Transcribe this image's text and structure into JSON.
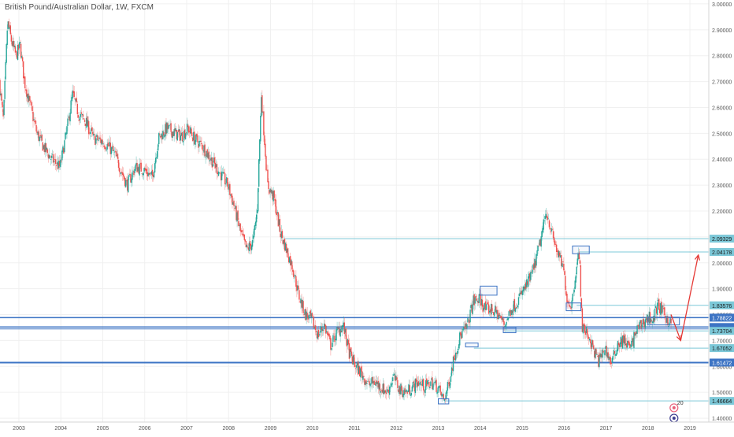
{
  "chart_data": {
    "type": "candlestick",
    "title": "British Pound/Australian Dollar, 1W, FXCM",
    "x_ticks": [
      "2003",
      "2004",
      "2005",
      "2006",
      "2007",
      "2008",
      "2009",
      "2010",
      "2011",
      "2012",
      "2013",
      "2014",
      "2015",
      "2016",
      "2017",
      "2018",
      "2019"
    ],
    "x_range": [
      2002.55,
      2019.45
    ],
    "y_ticks": [
      "1.40000",
      "1.50000",
      "1.60000",
      "1.70000",
      "1.80000",
      "1.90000",
      "2.00000",
      "2.10000",
      "2.20000",
      "2.30000",
      "2.40000",
      "2.50000",
      "2.60000",
      "2.70000",
      "2.80000",
      "2.90000",
      "3.00000"
    ],
    "y_range": [
      1.385,
      3.015
    ],
    "up_color": "#26a69a",
    "down_color": "#ef5350",
    "price_path": [
      [
        2002.55,
        2.7
      ],
      [
        2002.65,
        2.55
      ],
      [
        2002.75,
        2.93
      ],
      [
        2002.85,
        2.85
      ],
      [
        2002.95,
        2.8
      ],
      [
        2003.05,
        2.84
      ],
      [
        2003.15,
        2.7
      ],
      [
        2003.3,
        2.6
      ],
      [
        2003.45,
        2.5
      ],
      [
        2003.6,
        2.45
      ],
      [
        2003.8,
        2.4
      ],
      [
        2004.0,
        2.37
      ],
      [
        2004.15,
        2.5
      ],
      [
        2004.3,
        2.65
      ],
      [
        2004.45,
        2.57
      ],
      [
        2004.6,
        2.55
      ],
      [
        2004.8,
        2.48
      ],
      [
        2005.0,
        2.47
      ],
      [
        2005.15,
        2.45
      ],
      [
        2005.3,
        2.42
      ],
      [
        2005.45,
        2.36
      ],
      [
        2005.6,
        2.3
      ],
      [
        2005.8,
        2.37
      ],
      [
        2006.0,
        2.36
      ],
      [
        2006.2,
        2.33
      ],
      [
        2006.35,
        2.48
      ],
      [
        2006.55,
        2.52
      ],
      [
        2006.75,
        2.5
      ],
      [
        2006.9,
        2.49
      ],
      [
        2007.05,
        2.52
      ],
      [
        2007.2,
        2.48
      ],
      [
        2007.4,
        2.45
      ],
      [
        2007.6,
        2.4
      ],
      [
        2007.8,
        2.35
      ],
      [
        2008.0,
        2.3
      ],
      [
        2008.15,
        2.22
      ],
      [
        2008.3,
        2.12
      ],
      [
        2008.45,
        2.05
      ],
      [
        2008.6,
        2.08
      ],
      [
        2008.7,
        2.2
      ],
      [
        2008.8,
        2.65
      ],
      [
        2008.95,
        2.3
      ],
      [
        2009.1,
        2.25
      ],
      [
        2009.25,
        2.12
      ],
      [
        2009.4,
        2.05
      ],
      [
        2009.55,
        1.98
      ],
      [
        2009.7,
        1.87
      ],
      [
        2009.85,
        1.8
      ],
      [
        2010.0,
        1.78
      ],
      [
        2010.15,
        1.72
      ],
      [
        2010.3,
        1.76
      ],
      [
        2010.45,
        1.68
      ],
      [
        2010.6,
        1.73
      ],
      [
        2010.75,
        1.76
      ],
      [
        2010.9,
        1.65
      ],
      [
        2011.05,
        1.6
      ],
      [
        2011.2,
        1.57
      ],
      [
        2011.35,
        1.53
      ],
      [
        2011.5,
        1.54
      ],
      [
        2011.65,
        1.52
      ],
      [
        2011.8,
        1.5
      ],
      [
        2011.95,
        1.56
      ],
      [
        2012.1,
        1.51
      ],
      [
        2012.25,
        1.5
      ],
      [
        2012.4,
        1.52
      ],
      [
        2012.55,
        1.54
      ],
      [
        2012.7,
        1.52
      ],
      [
        2012.85,
        1.54
      ],
      [
        2013.0,
        1.52
      ],
      [
        2013.15,
        1.47
      ],
      [
        2013.25,
        1.52
      ],
      [
        2013.4,
        1.64
      ],
      [
        2013.55,
        1.72
      ],
      [
        2013.7,
        1.75
      ],
      [
        2013.85,
        1.85
      ],
      [
        2014.0,
        1.86
      ],
      [
        2014.15,
        1.82
      ],
      [
        2014.3,
        1.82
      ],
      [
        2014.45,
        1.8
      ],
      [
        2014.6,
        1.76
      ],
      [
        2014.75,
        1.82
      ],
      [
        2014.9,
        1.85
      ],
      [
        2015.0,
        1.88
      ],
      [
        2015.15,
        1.92
      ],
      [
        2015.3,
        1.98
      ],
      [
        2015.45,
        2.08
      ],
      [
        2015.6,
        2.2
      ],
      [
        2015.75,
        2.1
      ],
      [
        2015.9,
        2.02
      ],
      [
        2016.0,
        1.98
      ],
      [
        2016.1,
        1.85
      ],
      [
        2016.2,
        1.84
      ],
      [
        2016.3,
        1.97
      ],
      [
        2016.38,
        2.04
      ],
      [
        2016.45,
        1.75
      ],
      [
        2016.6,
        1.72
      ],
      [
        2016.75,
        1.65
      ],
      [
        2016.85,
        1.62
      ],
      [
        2017.0,
        1.67
      ],
      [
        2017.15,
        1.61
      ],
      [
        2017.3,
        1.69
      ],
      [
        2017.45,
        1.7
      ],
      [
        2017.6,
        1.67
      ],
      [
        2017.75,
        1.74
      ],
      [
        2017.9,
        1.77
      ],
      [
        2018.05,
        1.79
      ],
      [
        2018.15,
        1.78
      ],
      [
        2018.25,
        1.84
      ],
      [
        2018.4,
        1.8
      ],
      [
        2018.55,
        1.77
      ]
    ],
    "price_labels": [
      "2.09329",
      "2.04178",
      "1.83576",
      "1.78822",
      "1.75204",
      "1.74449",
      "1.73704",
      "1.67052",
      "1.61472",
      "1.46664"
    ],
    "h_lines": [
      {
        "value": 2.09329,
        "color": "#7cc8d8",
        "width": 1,
        "from_x": 2009.35,
        "label": "2.09329"
      },
      {
        "value": 2.04178,
        "color": "#7cc8d8",
        "width": 1,
        "from_x": 2016.35,
        "label": "2.04178"
      },
      {
        "value": 1.83576,
        "color": "#7cc8d8",
        "width": 1,
        "from_x": 2016.3,
        "label": "1.83576"
      },
      {
        "value": 1.78822,
        "color": "#3d74c4",
        "width": 1.5,
        "from_x": 2002.55,
        "label": "1.78822"
      },
      {
        "value": 1.75204,
        "color": "#3d74c4",
        "width": 1.5,
        "from_x": 2002.55,
        "label": "1.75204"
      },
      {
        "value": 1.74449,
        "color": "#3d74c4",
        "width": 1,
        "from_x": 2002.55,
        "label": "1.74449"
      },
      {
        "value": 1.73704,
        "color": "#7cc8d8",
        "width": 1,
        "from_x": 2014.6,
        "label": "1.73704"
      },
      {
        "value": 1.67052,
        "color": "#7cc8d8",
        "width": 1,
        "from_x": 2013.85,
        "label": "1.67052"
      },
      {
        "value": 1.61472,
        "color": "#3d74c4",
        "width": 2,
        "from_x": 2002.55,
        "label": "1.61472"
      },
      {
        "value": 1.46664,
        "color": "#7cc8d8",
        "width": 1,
        "from_x": 2013.15,
        "label": "1.46664"
      }
    ],
    "price_label_colors": {
      "1.78822": "#3d74c4",
      "1.75204": "#3d74c4",
      "1.74449": "#3d74c4",
      "1.61472": "#3d74c4",
      "default": "#7cc8d8"
    },
    "rects": [
      {
        "x0": 2013.0,
        "x1": 2013.25,
        "y0": 1.455,
        "y1": 1.475
      },
      {
        "x0": 2013.65,
        "x1": 2013.95,
        "y0": 1.675,
        "y1": 1.69
      },
      {
        "x0": 2014.0,
        "x1": 2014.4,
        "y0": 1.875,
        "y1": 1.91
      },
      {
        "x0": 2014.55,
        "x1": 2014.85,
        "y0": 1.73,
        "y1": 1.75
      },
      {
        "x0": 2016.05,
        "x1": 2016.4,
        "y0": 1.815,
        "y1": 1.845
      },
      {
        "x0": 2016.2,
        "x1": 2016.6,
        "y0": 2.035,
        "y1": 2.065
      },
      {
        "x0": 2018.0,
        "x1": 2018.75,
        "y0": 1.76,
        "y1": 1.79
      }
    ],
    "arrows": [
      {
        "points": [
          [
            2018.55,
            1.8
          ],
          [
            2018.78,
            1.7
          ]
        ],
        "color": "#e53935"
      },
      {
        "points": [
          [
            2018.78,
            1.7
          ],
          [
            2019.2,
            2.03
          ]
        ],
        "color": "#e53935"
      }
    ],
    "markers": [
      {
        "x": 2018.62,
        "y": 1.44,
        "color": "#e8607a",
        "label": "20"
      },
      {
        "x": 2018.62,
        "y": 1.4,
        "color": "#3d3d8f",
        "label": ""
      }
    ]
  }
}
